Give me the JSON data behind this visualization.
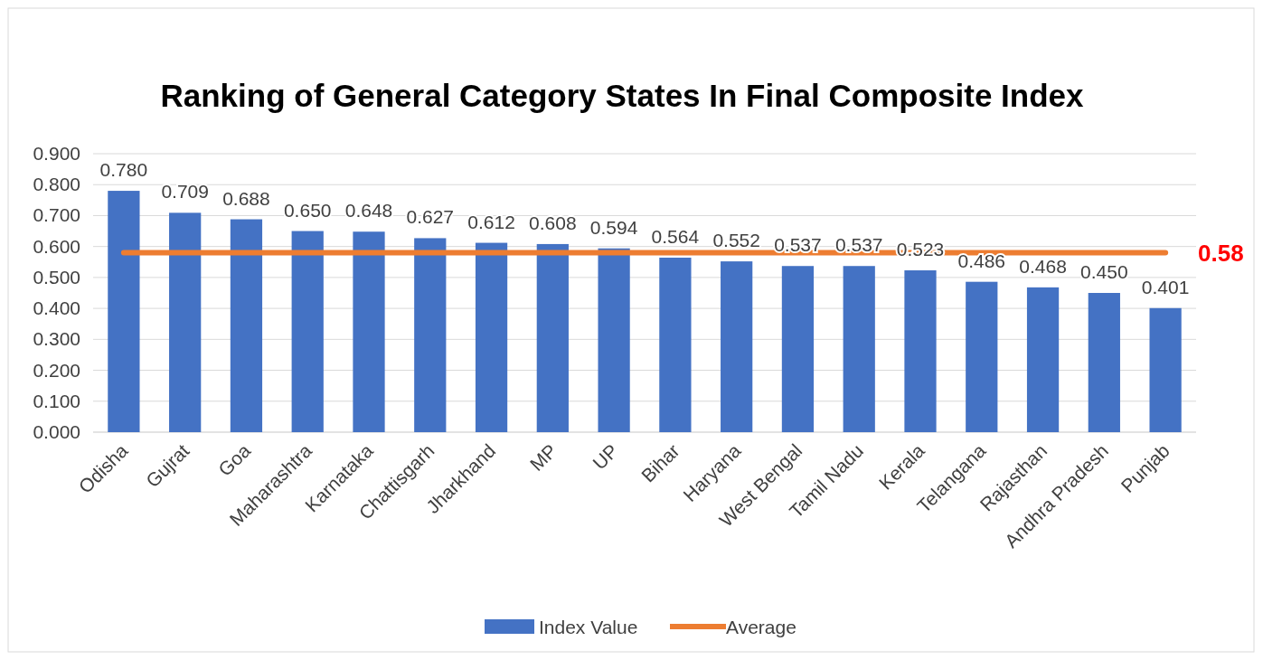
{
  "chart_data": {
    "type": "bar",
    "title": "Ranking of General Category States In Final Composite Index",
    "categories": [
      "Odisha",
      "Gujrat",
      "Goa",
      "Maharashtra",
      "Karnataka",
      "Chattisgarh",
      "Jharkhand",
      "MP",
      "UP",
      "Bihar",
      "Haryana",
      "West Bengal",
      "Tamil Nadu",
      "Kerala",
      "Telangana",
      "Rajasthan",
      "Andhra Pradesh",
      "Punjab"
    ],
    "series": [
      {
        "name": "Index Value",
        "color": "#4472c4",
        "values": [
          0.78,
          0.709,
          0.688,
          0.65,
          0.648,
          0.627,
          0.612,
          0.608,
          0.594,
          0.564,
          0.552,
          0.537,
          0.537,
          0.523,
          0.486,
          0.468,
          0.45,
          0.401
        ],
        "value_labels": [
          "0.780",
          "0.709",
          "0.688",
          "0.650",
          "0.648",
          "0.627",
          "0.612",
          "0.608",
          "0.594",
          "0.564",
          "0.552",
          "0.537",
          "0.537",
          "0.523",
          "0.486",
          "0.468",
          "0.450",
          "0.401"
        ]
      },
      {
        "name": "Average",
        "type": "line",
        "color": "#ed7d31",
        "values": [
          0.58,
          0.58,
          0.58,
          0.58,
          0.58,
          0.58,
          0.58,
          0.58,
          0.58,
          0.58,
          0.58,
          0.58,
          0.58,
          0.58,
          0.58,
          0.58,
          0.58,
          0.58
        ],
        "value_labels": [
          null,
          null,
          null,
          null,
          null,
          null,
          null,
          null,
          null,
          null,
          null,
          null,
          null,
          null,
          null,
          null,
          null,
          "0.58"
        ]
      }
    ],
    "ylim": [
      0,
      0.9
    ],
    "yticks": [
      {
        "value": 0,
        "label": "0.000"
      },
      {
        "value": 0.1,
        "label": "0.100"
      },
      {
        "value": 0.2,
        "label": "0.200"
      },
      {
        "value": 0.3,
        "label": "0.300"
      },
      {
        "value": 0.4,
        "label": "0.400"
      },
      {
        "value": 0.5,
        "label": "0.500"
      },
      {
        "value": 0.6,
        "label": "0.600"
      },
      {
        "value": 0.7,
        "label": "0.700"
      },
      {
        "value": 0.8,
        "label": "0.800"
      },
      {
        "value": 0.9,
        "label": "0.900"
      }
    ],
    "grid": "y",
    "legend": "bottom",
    "marker": "none"
  }
}
